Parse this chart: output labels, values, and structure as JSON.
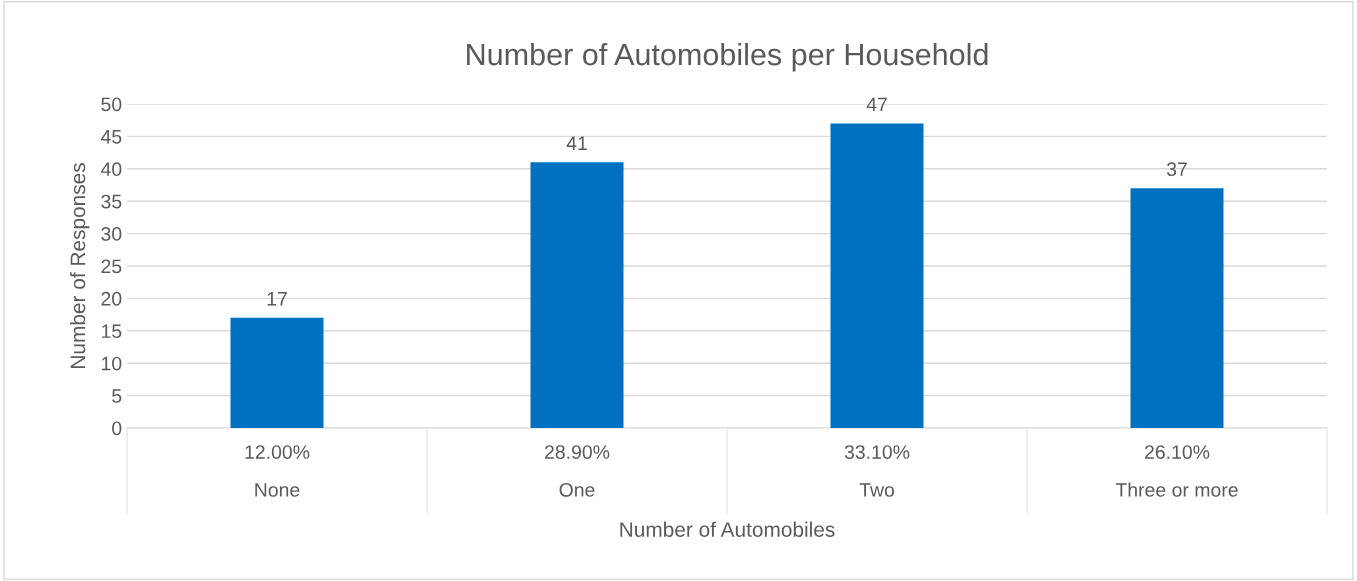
{
  "chart_data": {
    "type": "bar",
    "title": "Number of Automobiles per Household",
    "xlabel": "Number of Automobiles",
    "ylabel": "Number of Responses",
    "categories": [
      "12.00%\nNone",
      "28.90%\nOne",
      "33.10%\nTwo",
      "26.10%\nThree or more"
    ],
    "values": [
      17,
      41,
      47,
      37
    ],
    "color": "#0070c0",
    "ylim": [
      0,
      50
    ],
    "yticks": [
      0,
      5,
      10,
      15,
      20,
      25,
      30,
      35,
      40,
      45,
      50
    ],
    "grid": "y",
    "data_labels": true
  }
}
